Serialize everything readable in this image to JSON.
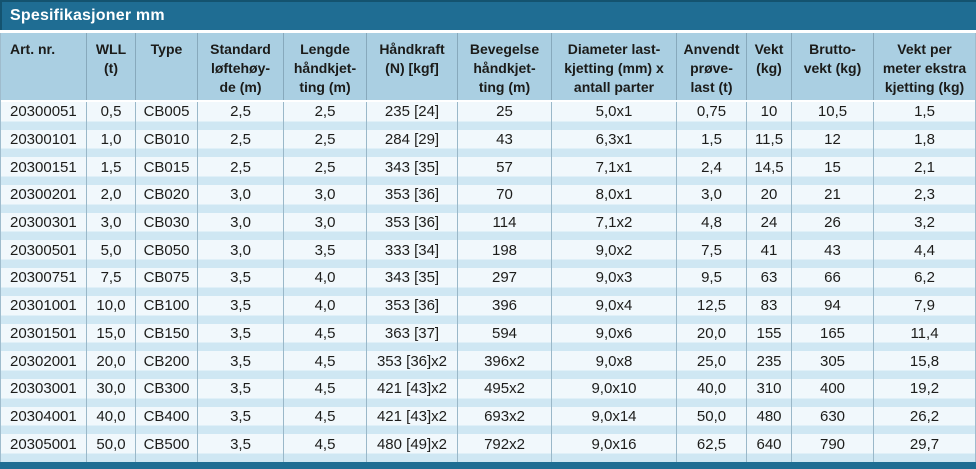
{
  "title": "Spesifikasjoner mm",
  "colors": {
    "teal": "#1f6d93",
    "header_bg": "#aacfe2",
    "row_pale": "#f1f8fc",
    "row_stripe": "#cfe7f3",
    "text": "#1d1d1b",
    "title_text": "#ffffff"
  },
  "table": {
    "columns": [
      {
        "id": "art-nr",
        "label": "Art. nr."
      },
      {
        "id": "wll",
        "label": "WLL\n(t)"
      },
      {
        "id": "type",
        "label": "Type"
      },
      {
        "id": "standard-loftehoyde",
        "label": "Standard\nløftehøy-\nde (m)"
      },
      {
        "id": "lengde-handkjetting",
        "label": "Lengde\nhåndkjet-\nting (m)"
      },
      {
        "id": "handkraft",
        "label": "Håndkraft\n(N) [kgf]"
      },
      {
        "id": "bevegelse-handkjetting",
        "label": "Bevegelse\nhåndkjet-\nting (m)"
      },
      {
        "id": "diameter-lastkjetting",
        "label": "Diameter last-\nkjetting (mm) x\nantall parter"
      },
      {
        "id": "anvendt-provelast",
        "label": "Anvendt\nprøve-\nlast (t)"
      },
      {
        "id": "vekt",
        "label": "Vekt\n(kg)"
      },
      {
        "id": "bruttovekt",
        "label": "Brutto-\nvekt (kg)"
      },
      {
        "id": "vekt-per-meter",
        "label": "Vekt per\nmeter ekstra\nkjetting (kg)"
      }
    ],
    "rows": [
      [
        "20300051",
        "0,5",
        "CB005",
        "2,5",
        "2,5",
        "235 [24]",
        "25",
        "5,0x1",
        "0,75",
        "10",
        "10,5",
        "1,5"
      ],
      [
        "20300101",
        "1,0",
        "CB010",
        "2,5",
        "2,5",
        "284 [29]",
        "43",
        "6,3x1",
        "1,5",
        "11,5",
        "12",
        "1,8"
      ],
      [
        "20300151",
        "1,5",
        "CB015",
        "2,5",
        "2,5",
        "343 [35]",
        "57",
        "7,1x1",
        "2,4",
        "14,5",
        "15",
        "2,1"
      ],
      [
        "20300201",
        "2,0",
        "CB020",
        "3,0",
        "3,0",
        "353 [36]",
        "70",
        "8,0x1",
        "3,0",
        "20",
        "21",
        "2,3"
      ],
      [
        "20300301",
        "3,0",
        "CB030",
        "3,0",
        "3,0",
        "353 [36]",
        "114",
        "7,1x2",
        "4,8",
        "24",
        "26",
        "3,2"
      ],
      [
        "20300501",
        "5,0",
        "CB050",
        "3,0",
        "3,5",
        "333 [34]",
        "198",
        "9,0x2",
        "7,5",
        "41",
        "43",
        "4,4"
      ],
      [
        "20300751",
        "7,5",
        "CB075",
        "3,5",
        "4,0",
        "343 [35]",
        "297",
        "9,0x3",
        "9,5",
        "63",
        "66",
        "6,2"
      ],
      [
        "20301001",
        "10,0",
        "CB100",
        "3,5",
        "4,0",
        "353 [36]",
        "396",
        "9,0x4",
        "12,5",
        "83",
        "94",
        "7,9"
      ],
      [
        "20301501",
        "15,0",
        "CB150",
        "3,5",
        "4,5",
        "363 [37]",
        "594",
        "9,0x6",
        "20,0",
        "155",
        "165",
        "11,4"
      ],
      [
        "20302001",
        "20,0",
        "CB200",
        "3,5",
        "4,5",
        "353 [36]x2",
        "396x2",
        "9,0x8",
        "25,0",
        "235",
        "305",
        "15,8"
      ],
      [
        "20303001",
        "30,0",
        "CB300",
        "3,5",
        "4,5",
        "421 [43]x2",
        "495x2",
        "9,0x10",
        "40,0",
        "310",
        "400",
        "19,2"
      ],
      [
        "20304001",
        "40,0",
        "CB400",
        "3,5",
        "4,5",
        "421 [43]x2",
        "693x2",
        "9,0x14",
        "50,0",
        "480",
        "630",
        "26,2"
      ],
      [
        "20305001",
        "50,0",
        "CB500",
        "3,5",
        "4,5",
        "480 [49]x2",
        "792x2",
        "9,0x16",
        "62,5",
        "640",
        "790",
        "29,7"
      ]
    ]
  }
}
